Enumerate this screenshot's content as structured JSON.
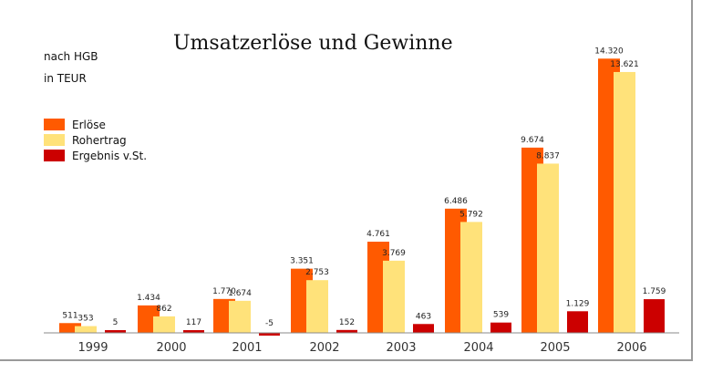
{
  "chart_data": {
    "type": "bar",
    "title": "Umsatzerlöse und Gewinne",
    "subtitle": [
      "nach HGB",
      "in TEUR"
    ],
    "categories": [
      "1999",
      "2000",
      "2001",
      "2002",
      "2003",
      "2004",
      "2005",
      "2006"
    ],
    "series": [
      {
        "name": "Erlöse",
        "color": "#ff5a00",
        "values": [
          511,
          1434,
          1770,
          3351,
          4761,
          6486,
          9674,
          14320
        ],
        "labels": [
          "511",
          "1.434",
          "1.770",
          "3.351",
          "4.761",
          "6.486",
          "9.674",
          "14.320"
        ]
      },
      {
        "name": "Rohertrag",
        "color": "#ffe27a",
        "values": [
          353,
          862,
          1674,
          2753,
          3769,
          5792,
          8837,
          13621
        ],
        "labels": [
          "353",
          "862",
          "1.674",
          "2.753",
          "3.769",
          "5.792",
          "8.837",
          "13.621"
        ]
      },
      {
        "name": "Ergebnis v.St.",
        "color": "#cc0000",
        "values": [
          5,
          117,
          -5,
          152,
          463,
          539,
          1129,
          1759
        ],
        "labels": [
          "5",
          "117",
          "-5",
          "152",
          "463",
          "539",
          "1.129",
          "1.759"
        ]
      }
    ],
    "xlabel": "",
    "ylabel": "",
    "ylim": [
      -400,
      15000
    ],
    "grid": false,
    "legend_position": "left"
  }
}
